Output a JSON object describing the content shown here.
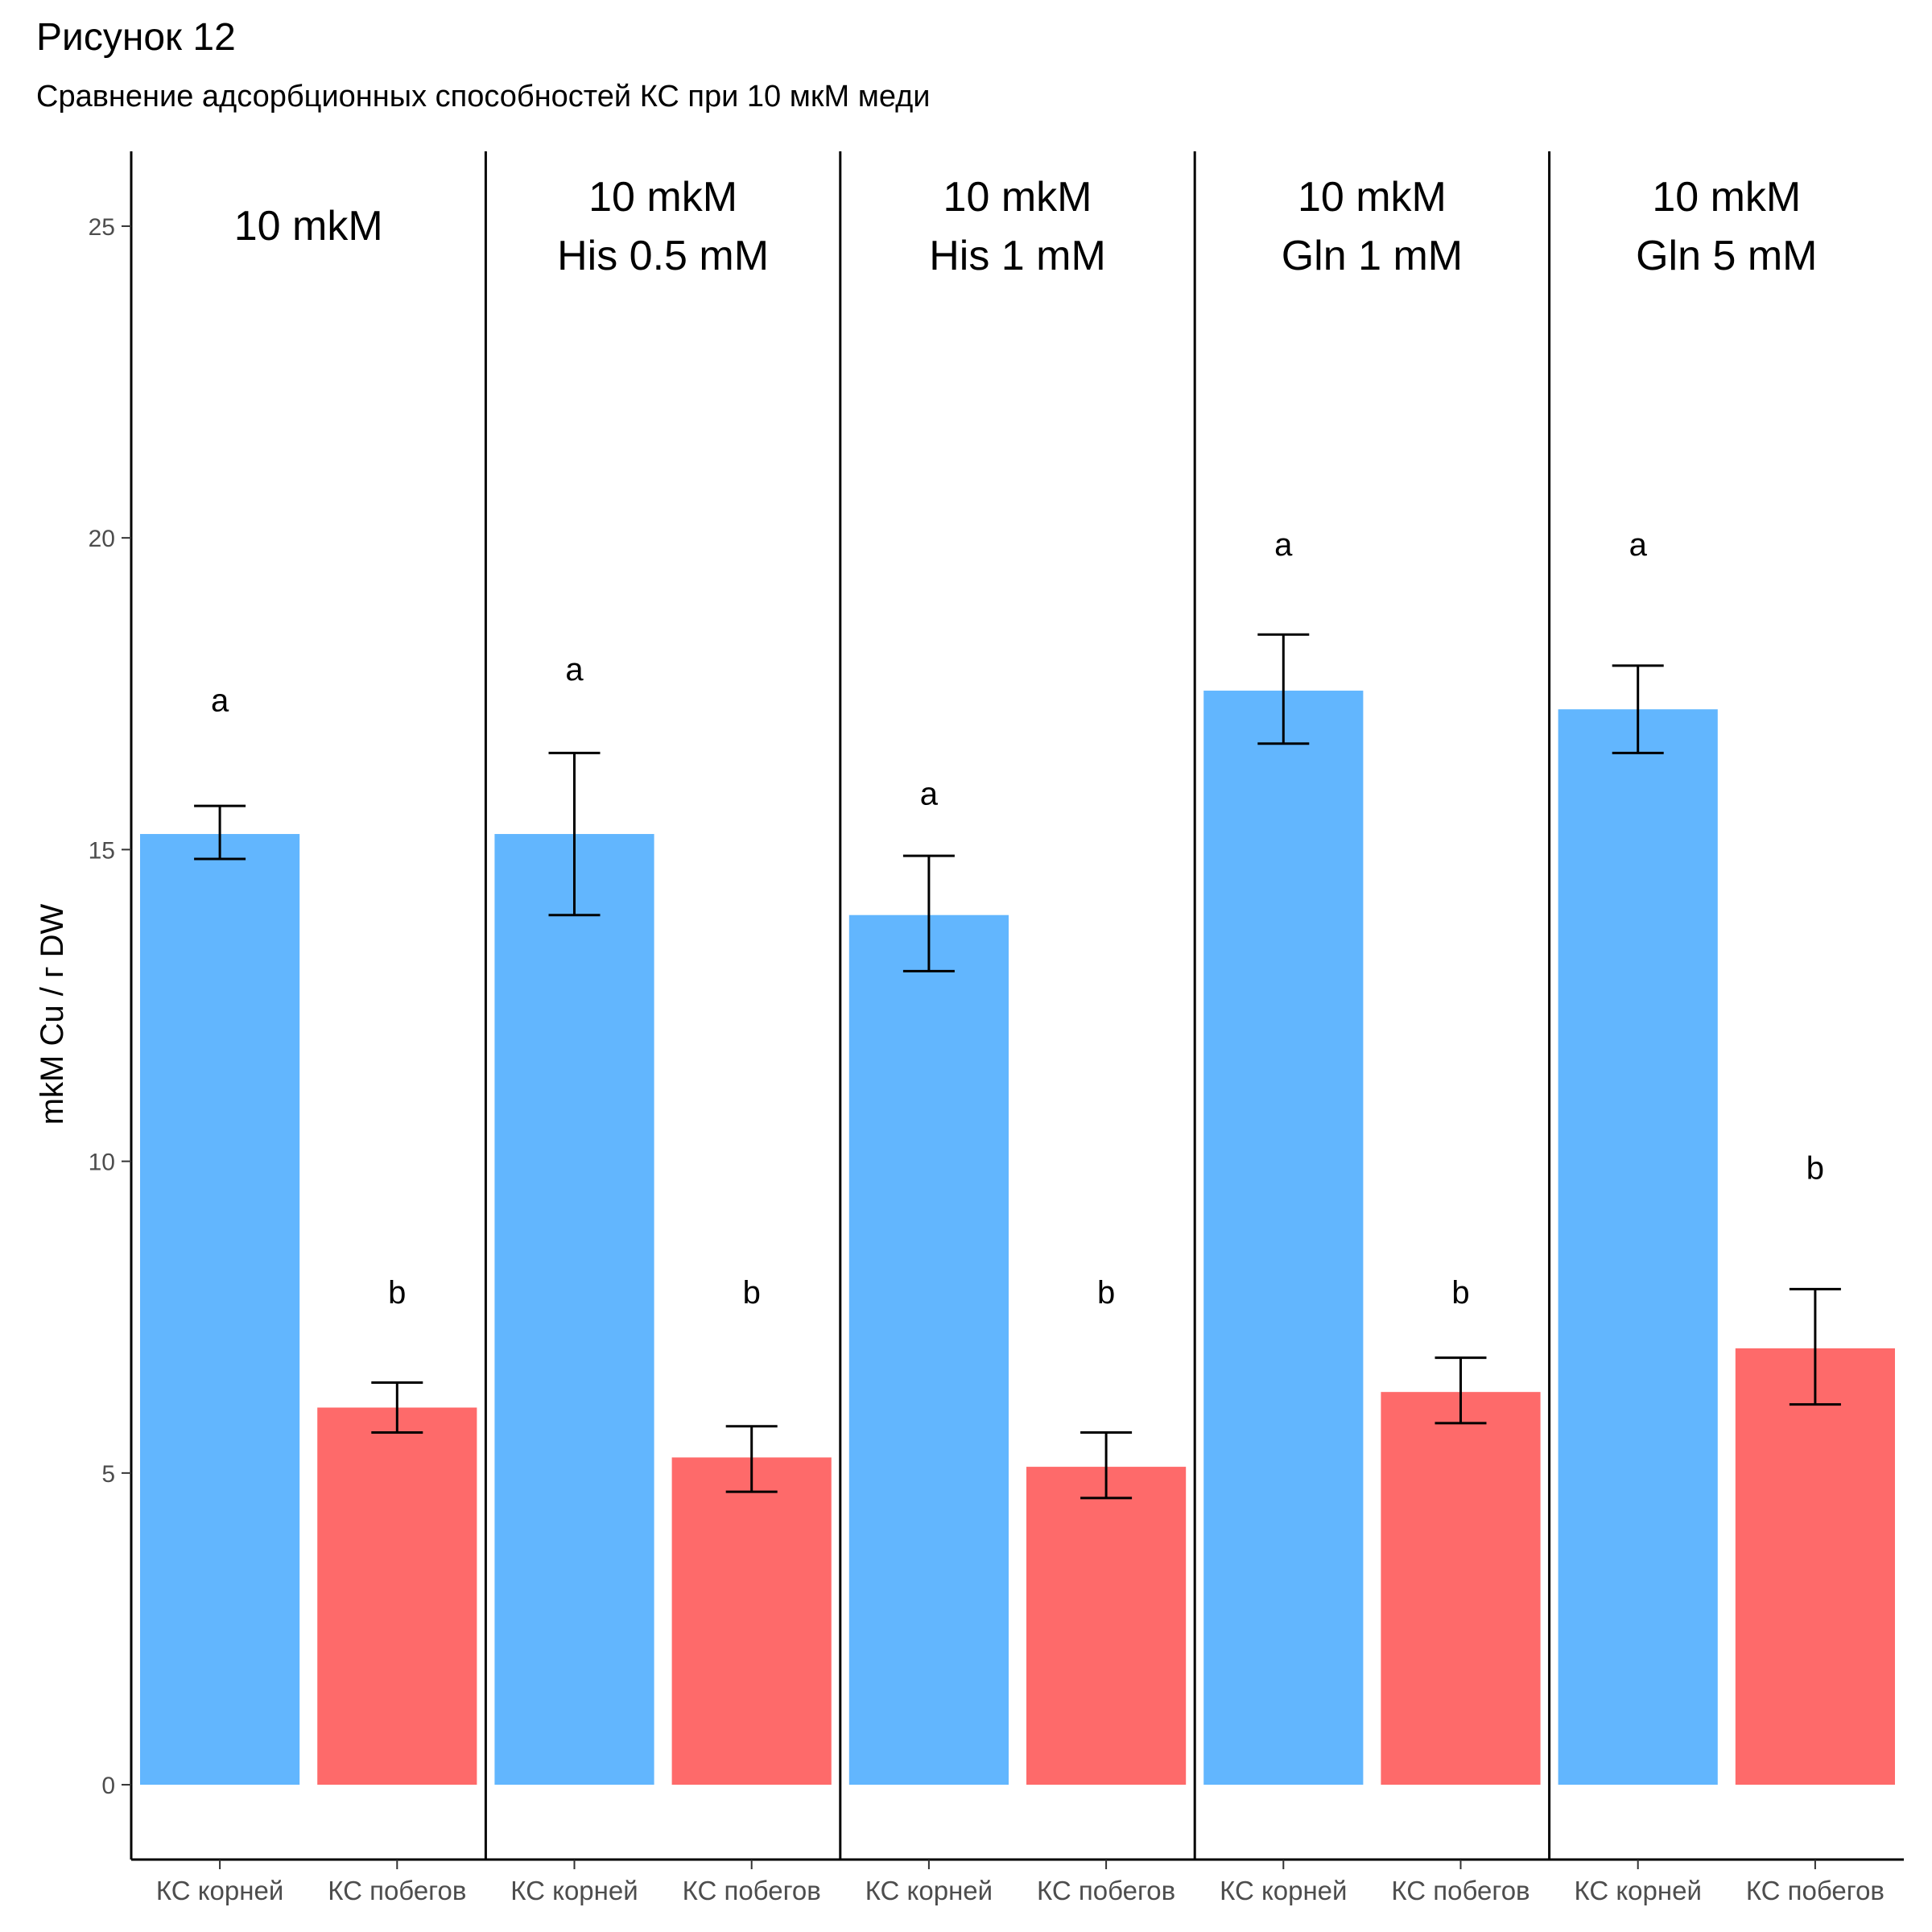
{
  "chart_data": {
    "type": "bar",
    "title": "Рисунок 12",
    "subtitle": "Сравнение адсорбционных способностей КС при 10 мкМ меди",
    "ylabel": "mkM Cu / г DW",
    "xlabel": "",
    "ylim": [
      -1.2,
      26.2
    ],
    "yticks": [
      0,
      5,
      10,
      15,
      20,
      25
    ],
    "grid": false,
    "legend": "none",
    "categories": [
      "КС корней",
      "КС побегов"
    ],
    "colors": {
      "КС корней": "#62b6fe",
      "КС побегов": "#fe6a6a"
    },
    "panels": [
      {
        "label_lines": [
          "10 mkM"
        ],
        "bars": [
          {
            "category": "КС корней",
            "value": 15.25,
            "err_low": 14.85,
            "err_high": 15.7,
            "sig": "a",
            "sig_y": 17.4
          },
          {
            "category": "КС побегов",
            "value": 6.05,
            "err_low": 5.65,
            "err_high": 6.45,
            "sig": "b",
            "sig_y": 7.9
          }
        ]
      },
      {
        "label_lines": [
          "10 mkM",
          "His 0.5 mM"
        ],
        "bars": [
          {
            "category": "КС корней",
            "value": 15.25,
            "err_low": 13.95,
            "err_high": 16.55,
            "sig": "a",
            "sig_y": 17.9
          },
          {
            "category": "КС побегов",
            "value": 5.25,
            "err_low": 4.7,
            "err_high": 5.75,
            "sig": "b",
            "sig_y": 7.9
          }
        ]
      },
      {
        "label_lines": [
          "10 mkM",
          "His 1 mM"
        ],
        "bars": [
          {
            "category": "КС корней",
            "value": 13.95,
            "err_low": 13.05,
            "err_high": 14.9,
            "sig": "a",
            "sig_y": 15.9
          },
          {
            "category": "КС побегов",
            "value": 5.1,
            "err_low": 4.6,
            "err_high": 5.65,
            "sig": "b",
            "sig_y": 7.9
          }
        ]
      },
      {
        "label_lines": [
          "10 mkM",
          "Gln 1 mM"
        ],
        "bars": [
          {
            "category": "КС корней",
            "value": 17.55,
            "err_low": 16.7,
            "err_high": 18.45,
            "sig": "a",
            "sig_y": 19.9
          },
          {
            "category": "КС побегов",
            "value": 6.3,
            "err_low": 5.8,
            "err_high": 6.85,
            "sig": "b",
            "sig_y": 7.9
          }
        ]
      },
      {
        "label_lines": [
          "10 mkM",
          "Gln 5 mM"
        ],
        "bars": [
          {
            "category": "КС корней",
            "value": 17.25,
            "err_low": 16.55,
            "err_high": 17.95,
            "sig": "a",
            "sig_y": 19.9
          },
          {
            "category": "КС побегов",
            "value": 7.0,
            "err_low": 6.1,
            "err_high": 7.95,
            "sig": "b",
            "sig_y": 9.9
          }
        ]
      }
    ]
  }
}
